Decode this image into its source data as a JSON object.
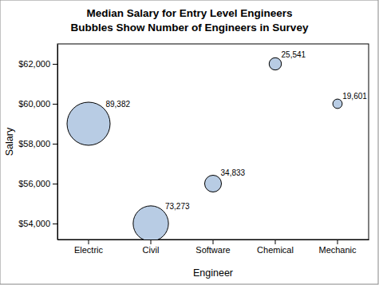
{
  "chart_data": {
    "type": "bubble",
    "title": [
      "Median Salary for Entry Level Engineers",
      "Bubbles Show Number of Engineers in Survey"
    ],
    "x_label": "Engineer",
    "y_label": "Salary",
    "categories": [
      "Electric",
      "Civil",
      "Software",
      "Chemical",
      "Mechanic"
    ],
    "values": [
      59000,
      54000,
      56000,
      62000,
      60000
    ],
    "sizes": [
      89382,
      73273,
      34833,
      25541,
      19601
    ],
    "size_labels": [
      "89,382",
      "73,273",
      "34,833",
      "25,541",
      "19,601"
    ],
    "color": "#b8cce4",
    "ylim": [
      53200,
      63000
    ],
    "yticks": [
      {
        "value": 54000,
        "label": "$54,000"
      },
      {
        "value": 56000,
        "label": "$56,000"
      },
      {
        "value": 58000,
        "label": "$58,000"
      },
      {
        "value": 60000,
        "label": "$60,000"
      },
      {
        "value": 62000,
        "label": "$62,000"
      }
    ],
    "grid": false
  }
}
